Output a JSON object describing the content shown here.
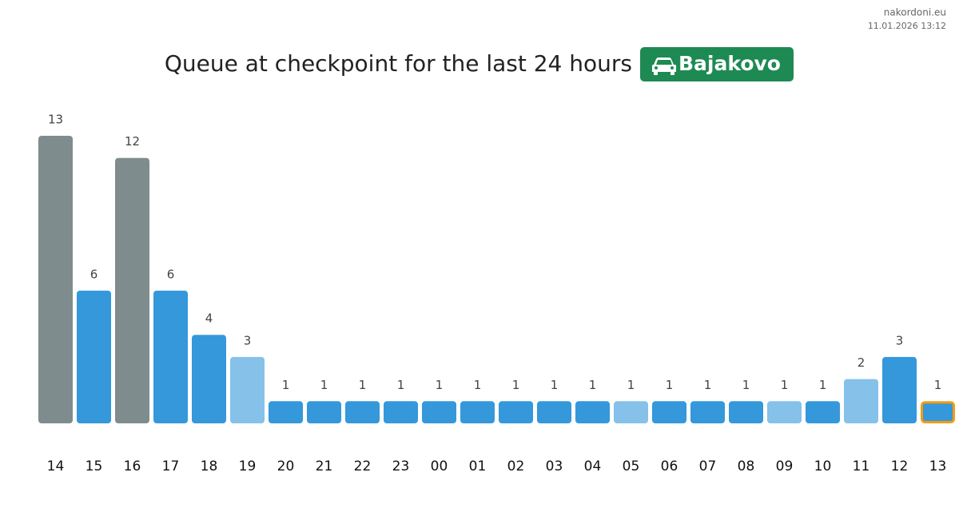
{
  "chart_data": {
    "type": "bar",
    "source": "nakordoni.eu",
    "timestamp": "11.01.2026 13:12",
    "title": "Queue at checkpoint for the last 24 hours",
    "badge": "Bajakovo",
    "badge_color": "#1e8a53",
    "categories": [
      "14",
      "15",
      "16",
      "17",
      "18",
      "19",
      "20",
      "21",
      "22",
      "23",
      "00",
      "01",
      "02",
      "03",
      "04",
      "05",
      "06",
      "07",
      "08",
      "09",
      "10",
      "11",
      "12",
      "13"
    ],
    "values": [
      13,
      6,
      12,
      6,
      4,
      3,
      1,
      1,
      1,
      1,
      1,
      1,
      1,
      1,
      1,
      1,
      1,
      1,
      1,
      1,
      1,
      2,
      3,
      1
    ],
    "colors": [
      "#7f8c8d",
      "#3498db",
      "#7f8c8d",
      "#3498db",
      "#3498db",
      "#85c1e9",
      "#3498db",
      "#3498db",
      "#3498db",
      "#3498db",
      "#3498db",
      "#3498db",
      "#3498db",
      "#3498db",
      "#3498db",
      "#85c1e9",
      "#3498db",
      "#3498db",
      "#3498db",
      "#85c1e9",
      "#3498db",
      "#85c1e9",
      "#3498db",
      "#3498db"
    ],
    "edgecolors": [
      null,
      null,
      null,
      null,
      null,
      null,
      null,
      null,
      null,
      null,
      null,
      null,
      null,
      null,
      null,
      null,
      null,
      null,
      null,
      null,
      null,
      null,
      null,
      "#f39c12"
    ]
  }
}
